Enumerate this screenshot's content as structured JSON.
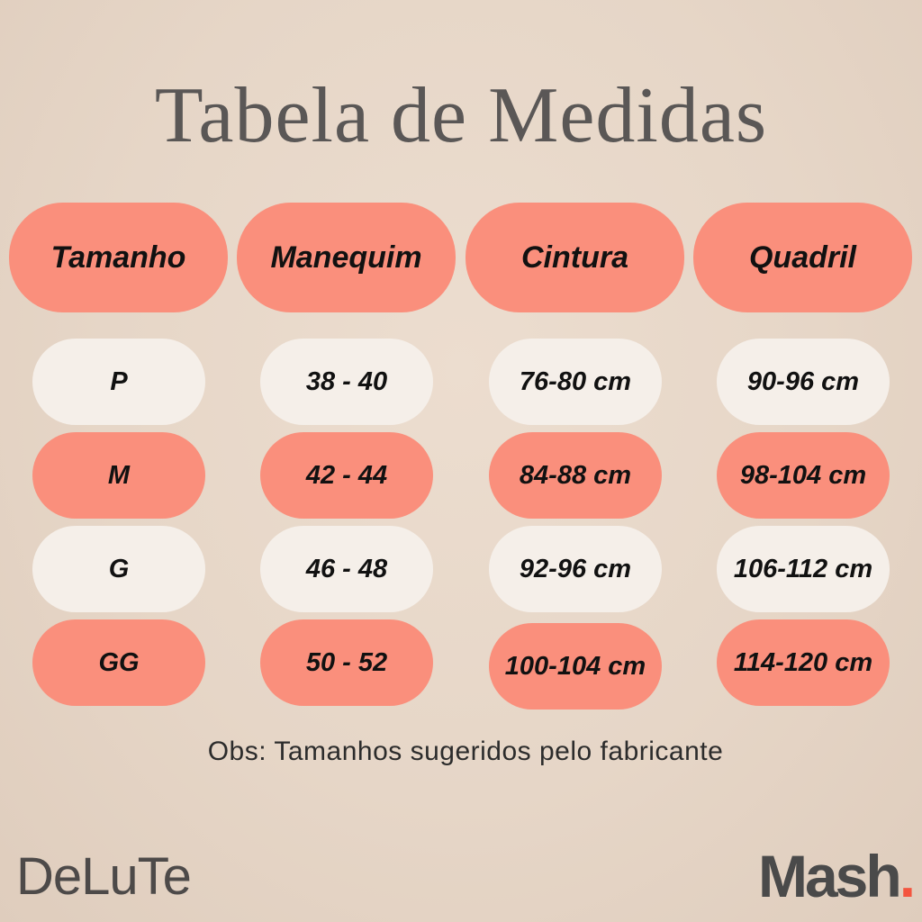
{
  "title": "Tabela de Medidas",
  "headers": [
    "Tamanho",
    "Manequim",
    "Cintura",
    "Quadril"
  ],
  "rows": [
    [
      "P",
      "38 - 40",
      "76-80 cm",
      "90-96 cm"
    ],
    [
      "M",
      "42 - 44",
      "84-88 cm",
      "98-104 cm"
    ],
    [
      "G",
      "46 - 48",
      "92-96 cm",
      "106-112 cm"
    ],
    [
      "GG",
      "50 - 52",
      "100-104 cm",
      "114-120 cm"
    ]
  ],
  "note": "Obs: Tamanhos sugeridos pelo fabricante",
  "brands": {
    "left": "DeLuTe",
    "right": "Mash",
    "right_dot": "."
  },
  "colors": {
    "accent": "#fa8f7c",
    "light_cell": "#f5efe9",
    "background": "#e6d6c7",
    "brand_dot": "#f4553f"
  }
}
